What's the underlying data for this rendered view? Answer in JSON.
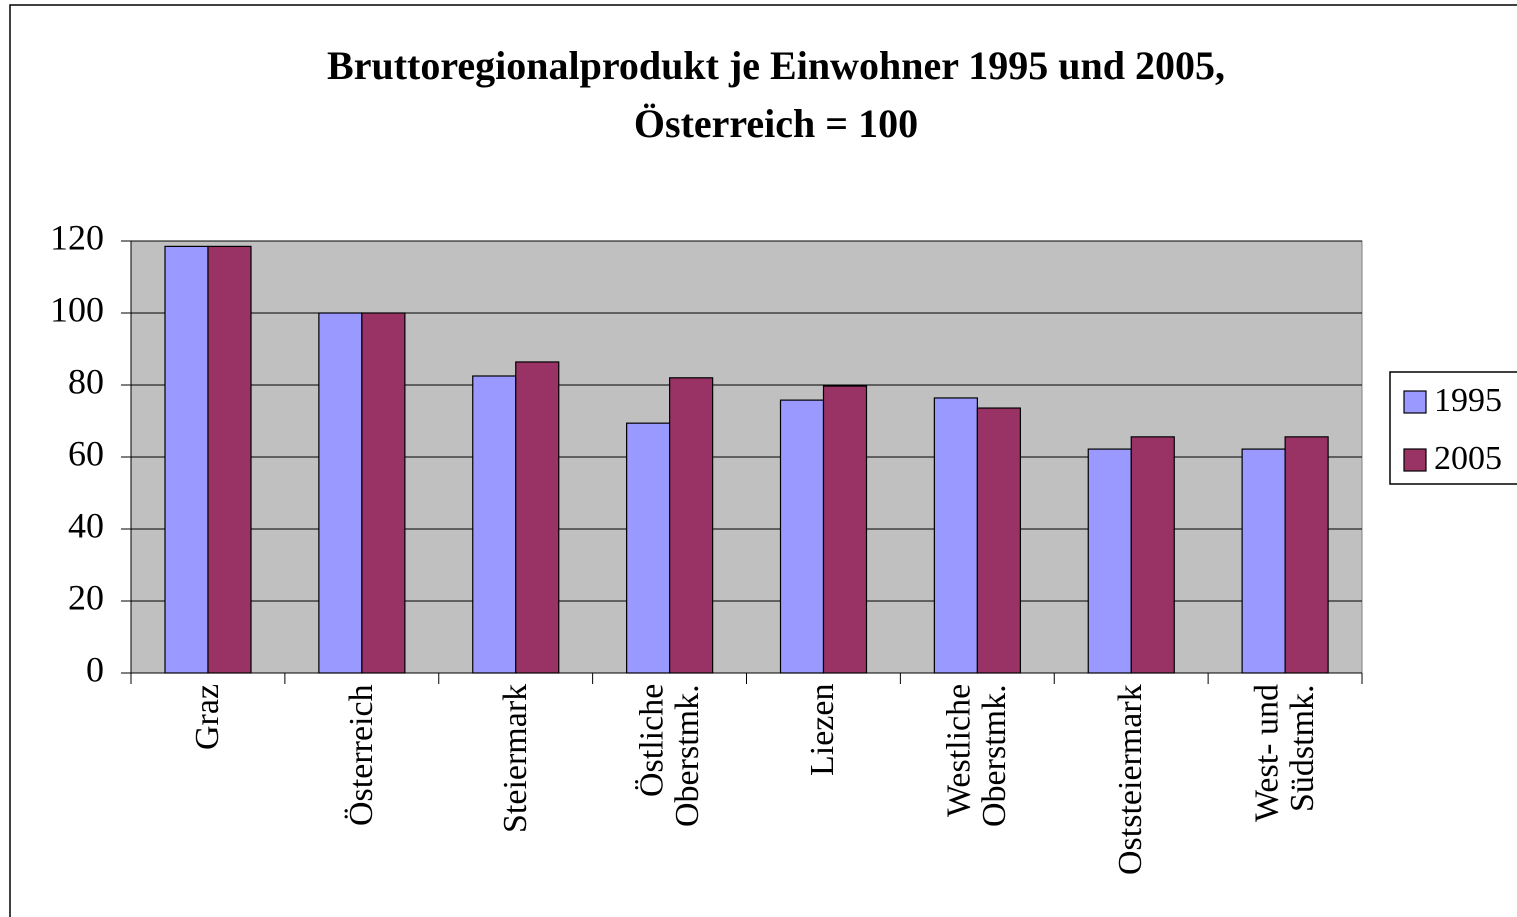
{
  "chart_data": {
    "type": "bar",
    "title": "Bruttoregionalprodukt je Einwohner 1995 und 2005,",
    "subtitle": "Österreich = 100",
    "categories": [
      "Graz",
      "Österreich",
      "Steiermark",
      "Östliche\nOberstmk.",
      "Liezen",
      "Westliche\nOberstmk.",
      "Oststeiermark",
      "West- und\nSüdstmk."
    ],
    "series": [
      {
        "name": "1995",
        "color": "#9999ff",
        "values": [
          118.5,
          100,
          82.5,
          69.4,
          75.8,
          76.4,
          62.2,
          62.2
        ]
      },
      {
        "name": "2005",
        "color": "#993366",
        "values": [
          118.5,
          100,
          86.4,
          82,
          79.7,
          73.6,
          65.6,
          65.6
        ]
      }
    ],
    "ylim": [
      0,
      120
    ],
    "yticks": [
      0,
      20,
      40,
      60,
      80,
      100,
      120
    ],
    "grid": true,
    "legend": "right"
  }
}
